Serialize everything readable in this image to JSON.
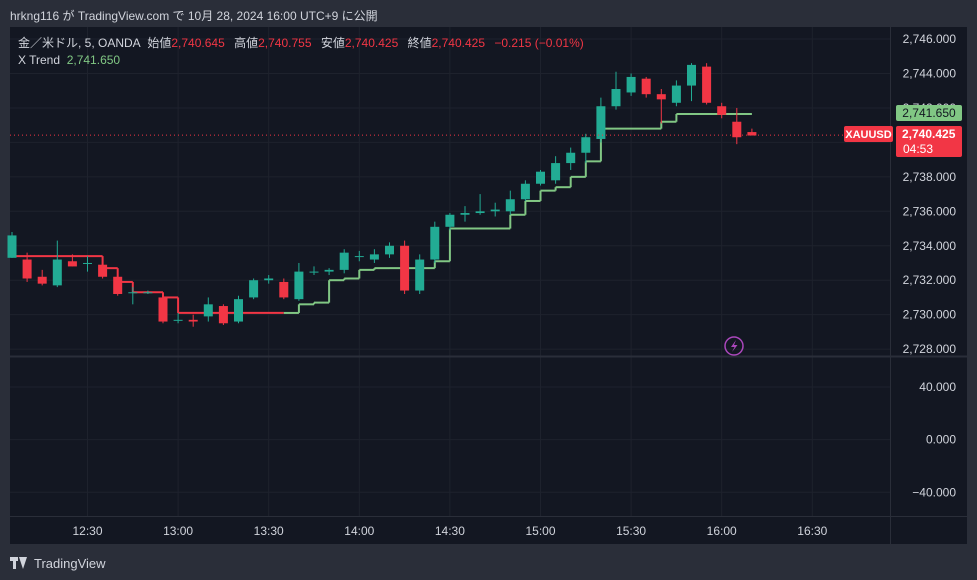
{
  "header": {
    "text": "hrkng116 が TradingView.com で 10月 28, 2024 16:00 UTC+9 に公開"
  },
  "legend": {
    "symbol": "金／米ドル, 5, OANDA",
    "open_label": "始値",
    "open": "2,740.645",
    "high_label": "高値",
    "high": "2,740.755",
    "low_label": "安値",
    "low": "2,740.425",
    "close_label": "終値",
    "close": "2,740.425",
    "change": "−0.215 (−0.01%)",
    "indicator_name": "X Trend",
    "indicator_value": "2,741.650"
  },
  "price_tags": {
    "indicator": "2,741.650",
    "symbol": "XAUUSD",
    "last_price": "2,740.425",
    "countdown": "04:53"
  },
  "footer": {
    "brand": "TradingView"
  },
  "colors": {
    "up": "#22ab94",
    "down": "#f23645",
    "trend_up": "#81c784",
    "trend_down": "#f23645",
    "background": "#131722"
  },
  "chart_data": [
    {
      "type": "candlestick",
      "y_ticks": [
        "2,746.000",
        "2,744.000",
        "2,742.000",
        "2,740.000",
        "2,738.000",
        "2,736.000",
        "2,734.000",
        "2,732.000",
        "2,730.000",
        "2,728.000"
      ],
      "y_tick_values": [
        2746,
        2744,
        2742,
        2740,
        2738,
        2736,
        2734,
        2732,
        2730,
        2728
      ],
      "ylim": [
        2727.6,
        2746.7
      ],
      "x_ticks": [
        "12:30",
        "13:00",
        "13:30",
        "14:00",
        "14:30",
        "15:00",
        "15:30",
        "16:00",
        "16:30"
      ],
      "x_tick_index": [
        5,
        11,
        17,
        23,
        29,
        35,
        41,
        47,
        53
      ],
      "candles": [
        {
          "o": 2733.3,
          "h": 2734.8,
          "l": 2733.3,
          "c": 2734.6
        },
        {
          "o": 2733.2,
          "h": 2733.6,
          "l": 2731.9,
          "c": 2732.1
        },
        {
          "o": 2732.2,
          "h": 2732.6,
          "l": 2731.7,
          "c": 2731.8
        },
        {
          "o": 2731.7,
          "h": 2734.3,
          "l": 2731.6,
          "c": 2733.2
        },
        {
          "o": 2733.1,
          "h": 2733.5,
          "l": 2732.8,
          "c": 2732.8
        },
        {
          "o": 2732.95,
          "h": 2733.4,
          "l": 2732.5,
          "c": 2733.0
        },
        {
          "o": 2732.9,
          "h": 2733.1,
          "l": 2732.1,
          "c": 2732.2
        },
        {
          "o": 2732.2,
          "h": 2732.4,
          "l": 2731.1,
          "c": 2731.2
        },
        {
          "o": 2731.3,
          "h": 2731.6,
          "l": 2730.6,
          "c": 2731.3
        },
        {
          "o": 2731.3,
          "h": 2731.4,
          "l": 2731.2,
          "c": 2731.3
        },
        {
          "o": 2731.0,
          "h": 2731.1,
          "l": 2729.5,
          "c": 2729.6
        },
        {
          "o": 2729.7,
          "h": 2730.1,
          "l": 2729.5,
          "c": 2729.7
        },
        {
          "o": 2729.7,
          "h": 2730.0,
          "l": 2729.3,
          "c": 2729.6
        },
        {
          "o": 2729.9,
          "h": 2731.0,
          "l": 2729.6,
          "c": 2730.6
        },
        {
          "o": 2730.5,
          "h": 2730.6,
          "l": 2729.4,
          "c": 2729.5
        },
        {
          "o": 2729.6,
          "h": 2731.1,
          "l": 2729.5,
          "c": 2730.9
        },
        {
          "o": 2731.0,
          "h": 2732.1,
          "l": 2730.9,
          "c": 2732.0
        },
        {
          "o": 2732.0,
          "h": 2732.3,
          "l": 2731.8,
          "c": 2732.1
        },
        {
          "o": 2731.9,
          "h": 2732.1,
          "l": 2730.9,
          "c": 2731.0
        },
        {
          "o": 2730.9,
          "h": 2733.0,
          "l": 2730.8,
          "c": 2732.5
        },
        {
          "o": 2732.5,
          "h": 2732.8,
          "l": 2732.3,
          "c": 2732.5
        },
        {
          "o": 2732.5,
          "h": 2732.7,
          "l": 2732.3,
          "c": 2732.6
        },
        {
          "o": 2732.6,
          "h": 2733.8,
          "l": 2732.4,
          "c": 2733.6
        },
        {
          "o": 2733.4,
          "h": 2733.7,
          "l": 2733.1,
          "c": 2733.4
        },
        {
          "o": 2733.2,
          "h": 2733.8,
          "l": 2733.0,
          "c": 2733.5
        },
        {
          "o": 2733.5,
          "h": 2734.2,
          "l": 2733.3,
          "c": 2734.0
        },
        {
          "o": 2734.0,
          "h": 2734.3,
          "l": 2731.2,
          "c": 2731.4
        },
        {
          "o": 2731.4,
          "h": 2733.5,
          "l": 2731.2,
          "c": 2733.2
        },
        {
          "o": 2733.2,
          "h": 2735.4,
          "l": 2733.0,
          "c": 2735.1
        },
        {
          "o": 2735.1,
          "h": 2735.9,
          "l": 2734.9,
          "c": 2735.8
        },
        {
          "o": 2735.8,
          "h": 2736.3,
          "l": 2735.4,
          "c": 2735.9
        },
        {
          "o": 2735.9,
          "h": 2737.0,
          "l": 2735.8,
          "c": 2736.0
        },
        {
          "o": 2736.0,
          "h": 2736.5,
          "l": 2735.7,
          "c": 2736.1
        },
        {
          "o": 2736.0,
          "h": 2737.2,
          "l": 2735.8,
          "c": 2736.7
        },
        {
          "o": 2736.7,
          "h": 2737.8,
          "l": 2736.6,
          "c": 2737.6
        },
        {
          "o": 2737.6,
          "h": 2738.4,
          "l": 2737.5,
          "c": 2738.3
        },
        {
          "o": 2737.8,
          "h": 2739.2,
          "l": 2737.6,
          "c": 2738.8
        },
        {
          "o": 2738.8,
          "h": 2739.7,
          "l": 2738.4,
          "c": 2739.4
        },
        {
          "o": 2739.4,
          "h": 2740.5,
          "l": 2738.8,
          "c": 2740.3
        },
        {
          "o": 2740.2,
          "h": 2742.6,
          "l": 2740.0,
          "c": 2742.1
        },
        {
          "o": 2742.1,
          "h": 2744.1,
          "l": 2741.9,
          "c": 2743.1
        },
        {
          "o": 2742.9,
          "h": 2744.0,
          "l": 2742.7,
          "c": 2743.8
        },
        {
          "o": 2743.7,
          "h": 2743.8,
          "l": 2742.6,
          "c": 2742.8
        },
        {
          "o": 2742.8,
          "h": 2743.1,
          "l": 2741.1,
          "c": 2742.5
        },
        {
          "o": 2742.3,
          "h": 2743.6,
          "l": 2742.1,
          "c": 2743.3
        },
        {
          "o": 2743.3,
          "h": 2744.6,
          "l": 2742.4,
          "c": 2744.5
        },
        {
          "o": 2744.4,
          "h": 2744.6,
          "l": 2742.2,
          "c": 2742.3
        },
        {
          "o": 2742.1,
          "h": 2742.3,
          "l": 2741.4,
          "c": 2741.6
        },
        {
          "o": 2741.2,
          "h": 2742.0,
          "l": 2739.9,
          "c": 2740.3
        },
        {
          "o": 2740.6,
          "h": 2740.8,
          "l": 2740.4,
          "c": 2740.4
        }
      ],
      "trend": [
        {
          "from": 0,
          "to": 6,
          "value": 2733.4,
          "dir": "down"
        },
        {
          "from": 6,
          "to": 7,
          "value": 2732.7,
          "dir": "down"
        },
        {
          "from": 7,
          "to": 8,
          "value": 2731.9,
          "dir": "down"
        },
        {
          "from": 8,
          "to": 10,
          "value": 2731.3,
          "dir": "down"
        },
        {
          "from": 10,
          "to": 11,
          "value": 2731.0,
          "dir": "down"
        },
        {
          "from": 11,
          "to": 18,
          "value": 2730.1,
          "dir": "down"
        },
        {
          "from": 18,
          "to": 19,
          "value": 2730.1,
          "dir": "up"
        },
        {
          "from": 19,
          "to": 20,
          "value": 2730.6,
          "dir": "up"
        },
        {
          "from": 20,
          "to": 21,
          "value": 2730.7,
          "dir": "up"
        },
        {
          "from": 21,
          "to": 22,
          "value": 2732.0,
          "dir": "up"
        },
        {
          "from": 22,
          "to": 23,
          "value": 2732.1,
          "dir": "up"
        },
        {
          "from": 23,
          "to": 24,
          "value": 2732.6,
          "dir": "up"
        },
        {
          "from": 24,
          "to": 25,
          "value": 2732.7,
          "dir": "up"
        },
        {
          "from": 25,
          "to": 28,
          "value": 2732.7,
          "dir": "up"
        },
        {
          "from": 28,
          "to": 29,
          "value": 2733.1,
          "dir": "up"
        },
        {
          "from": 29,
          "to": 33,
          "value": 2735.0,
          "dir": "up"
        },
        {
          "from": 33,
          "to": 34,
          "value": 2735.8,
          "dir": "up"
        },
        {
          "from": 34,
          "to": 35,
          "value": 2736.6,
          "dir": "up"
        },
        {
          "from": 35,
          "to": 36,
          "value": 2737.2,
          "dir": "up"
        },
        {
          "from": 36,
          "to": 37,
          "value": 2737.4,
          "dir": "up"
        },
        {
          "from": 37,
          "to": 38,
          "value": 2738.0,
          "dir": "up"
        },
        {
          "from": 38,
          "to": 39,
          "value": 2738.9,
          "dir": "up"
        },
        {
          "from": 39,
          "to": 40,
          "value": 2740.8,
          "dir": "up"
        },
        {
          "from": 40,
          "to": 43,
          "value": 2740.8,
          "dir": "up"
        },
        {
          "from": 43,
          "to": 44,
          "value": 2741.2,
          "dir": "up"
        },
        {
          "from": 44,
          "to": 49,
          "value": 2741.65,
          "dir": "up"
        }
      ],
      "last_price": 2740.425
    },
    {
      "type": "line",
      "y_ticks": [
        "40.000",
        "0.000",
        "−40.000"
      ],
      "y_tick_values": [
        40,
        0,
        -40
      ],
      "ylim": [
        -58,
        62
      ],
      "values": []
    }
  ]
}
